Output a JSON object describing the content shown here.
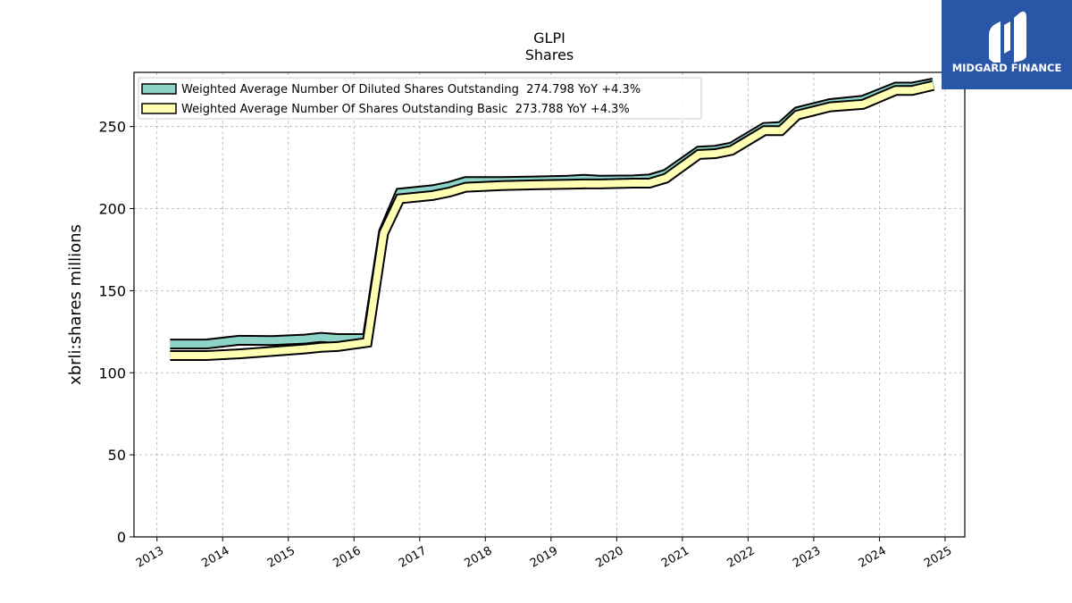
{
  "chart_data": {
    "type": "line",
    "title": "GLPI",
    "subtitle": "Shares",
    "xlabel": "",
    "ylabel": "xbrli:shares millions",
    "xlim": [
      2012.65,
      2025.3
    ],
    "ylim": [
      0,
      283
    ],
    "y_ticks": [
      0,
      50,
      100,
      150,
      200,
      250
    ],
    "x_ticks": [
      "2013",
      "2014",
      "2015",
      "2016",
      "2017",
      "2018",
      "2019",
      "2020",
      "2021",
      "2022",
      "2023",
      "2024",
      "2025"
    ],
    "grid": true,
    "legend_position": "top-left",
    "series": [
      {
        "name": "Weighted Average Number Of Diluted Shares Outstanding  274.798 YoY +4.3%",
        "color": "#8dd3c7",
        "x": [
          2013.2,
          2013.75,
          2014.25,
          2014.75,
          2015.25,
          2015.5,
          2015.75,
          2016.2,
          2016.45,
          2016.7,
          2017.2,
          2017.45,
          2017.7,
          2018.25,
          2018.75,
          2019.25,
          2019.5,
          2019.75,
          2020.25,
          2020.5,
          2020.75,
          2021.25,
          2021.5,
          2021.75,
          2022.25,
          2022.5,
          2022.75,
          2023.25,
          2023.75,
          2024.25,
          2024.5,
          2024.82
        ],
        "y": [
          117.5,
          117.5,
          119.8,
          119.6,
          120.5,
          121.5,
          120.8,
          120.8,
          186,
          209.5,
          211.5,
          213.5,
          216.5,
          216.5,
          216.8,
          217.3,
          217.8,
          217.3,
          217.5,
          218.0,
          221.0,
          235.0,
          235.5,
          237.5,
          249.5,
          250.0,
          259.0,
          264.0,
          266.0,
          274.0,
          274.0,
          276.5
        ]
      },
      {
        "name": "Weighted Average Number Of Shares Outstanding Basic  273.788 YoY +4.3%",
        "color": "#ffffb3",
        "x": [
          2013.2,
          2013.75,
          2014.25,
          2014.75,
          2015.25,
          2015.5,
          2015.75,
          2016.2,
          2016.45,
          2016.7,
          2017.2,
          2017.45,
          2017.7,
          2018.25,
          2018.75,
          2019.25,
          2019.5,
          2019.75,
          2020.25,
          2020.5,
          2020.75,
          2021.25,
          2021.5,
          2021.75,
          2022.25,
          2022.5,
          2022.75,
          2023.25,
          2023.75,
          2024.25,
          2024.5,
          2024.82
        ],
        "y": [
          110.5,
          110.5,
          111.5,
          113.0,
          114.5,
          115.5,
          116.0,
          118.5,
          185,
          206.0,
          208.0,
          210.0,
          213.0,
          214.0,
          214.5,
          214.8,
          215.0,
          215.0,
          215.5,
          215.5,
          218.5,
          233.0,
          233.5,
          235.5,
          247.5,
          247.5,
          257.0,
          262.0,
          263.5,
          272.0,
          272.0,
          275.0
        ]
      }
    ]
  },
  "logo": {
    "text": "MIDGARD FINANCE",
    "background": "#2a56a8"
  }
}
